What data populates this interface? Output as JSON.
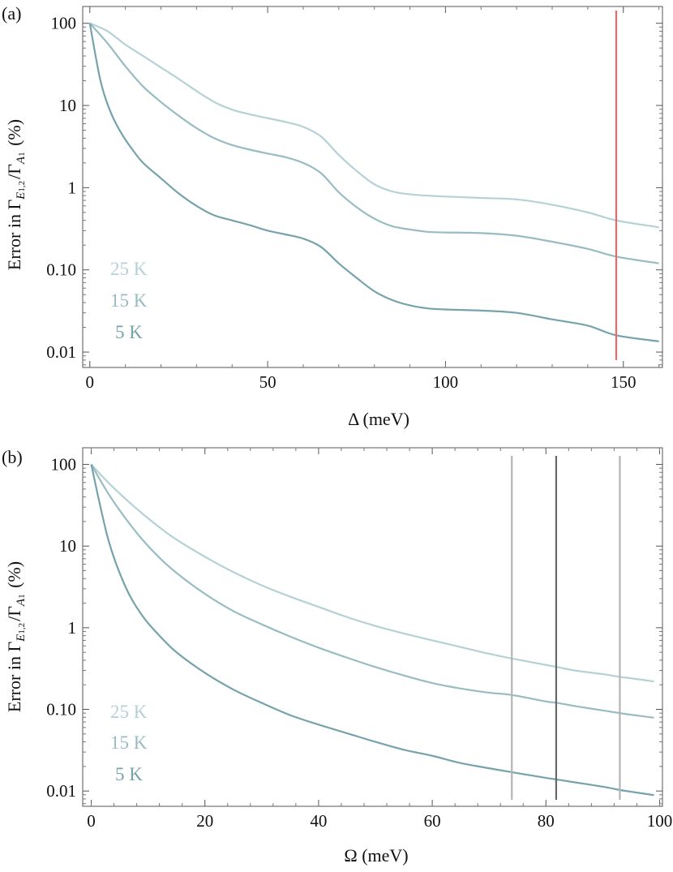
{
  "chart_data": [
    {
      "panel": "(a)",
      "type": "line",
      "xlabel": "Δ (meV)",
      "ylabel_prefix": "Error in Γ",
      "ylabel_sub1": "E",
      "ylabel_sub1b": "1,2",
      "ylabel_mid": "/Γ",
      "ylabel_sub2": "A",
      "ylabel_sub2b": "1",
      "ylabel_suffix": " (%)",
      "y_scale": "log",
      "xlim": [
        -2,
        161
      ],
      "ylim": [
        0.0065,
        160
      ],
      "xticks": [
        0,
        50,
        100,
        150
      ],
      "xtick_labels": [
        "0",
        "50",
        "100",
        "150"
      ],
      "yticks": [
        100,
        10,
        1,
        0.1,
        0.01
      ],
      "ytick_labels": [
        "100",
        "10",
        "1",
        "0.10",
        "0.01"
      ],
      "series": [
        {
          "name": "25 K",
          "color": "#b5d1d5",
          "x": [
            0,
            5,
            10,
            15,
            20,
            25,
            30,
            35,
            40,
            45,
            50,
            55,
            60,
            65,
            70,
            75,
            80,
            85,
            90,
            95,
            100,
            110,
            120,
            130,
            140,
            148,
            160
          ],
          "y": [
            100,
            80,
            55,
            40,
            29,
            21,
            15,
            11,
            8.9,
            7.8,
            7.0,
            6.3,
            5.5,
            4.2,
            2.5,
            1.6,
            1.1,
            0.9,
            0.83,
            0.8,
            0.78,
            0.75,
            0.72,
            0.62,
            0.5,
            0.4,
            0.33
          ]
        },
        {
          "name": "15 K",
          "color": "#98bcc1",
          "x": [
            0,
            5,
            10,
            15,
            20,
            25,
            30,
            35,
            40,
            45,
            50,
            55,
            60,
            65,
            70,
            75,
            80,
            85,
            90,
            95,
            100,
            110,
            120,
            130,
            140,
            148,
            160
          ],
          "y": [
            100,
            57,
            30,
            17,
            11,
            7.5,
            5.3,
            4.0,
            3.3,
            2.9,
            2.6,
            2.35,
            2.0,
            1.5,
            0.88,
            0.58,
            0.42,
            0.34,
            0.31,
            0.29,
            0.285,
            0.28,
            0.26,
            0.22,
            0.18,
            0.145,
            0.12
          ]
        },
        {
          "name": "5 K",
          "color": "#76a3ab",
          "x": [
            0,
            3,
            6,
            9,
            12,
            15,
            20,
            25,
            30,
            35,
            40,
            45,
            50,
            55,
            60,
            65,
            70,
            75,
            80,
            85,
            90,
            95,
            100,
            110,
            120,
            130,
            140,
            148,
            160
          ],
          "y": [
            100,
            20,
            8,
            4.5,
            2.9,
            2.0,
            1.3,
            0.85,
            0.6,
            0.46,
            0.4,
            0.35,
            0.3,
            0.27,
            0.24,
            0.19,
            0.12,
            0.08,
            0.055,
            0.043,
            0.037,
            0.034,
            0.033,
            0.032,
            0.03,
            0.025,
            0.021,
            0.016,
            0.0135
          ]
        }
      ],
      "vlines": [
        {
          "x": 148,
          "color": "#f0676a"
        }
      ],
      "legend_position": "bottom-left"
    },
    {
      "panel": "(b)",
      "type": "line",
      "xlabel": "Ω (meV)",
      "ylabel_prefix": "Error in Γ",
      "ylabel_sub1": "E",
      "ylabel_sub1b": "1,2",
      "ylabel_mid": "/Γ",
      "ylabel_sub2": "A",
      "ylabel_sub2b": "1",
      "ylabel_suffix": " (%)",
      "y_scale": "log",
      "xlim": [
        -1.5,
        100.5
      ],
      "ylim": [
        0.0065,
        160
      ],
      "xticks": [
        0,
        20,
        40,
        60,
        80,
        100
      ],
      "xtick_labels": [
        "0",
        "20",
        "40",
        "60",
        "80",
        "100"
      ],
      "yticks": [
        100,
        10,
        1,
        0.1,
        0.01
      ],
      "ytick_labels": [
        "100",
        "10",
        "1",
        "0.10",
        "0.01"
      ],
      "series": [
        {
          "name": "25 K",
          "color": "#b5d1d5",
          "x": [
            0,
            3,
            6,
            9,
            12,
            15,
            20,
            25,
            30,
            35,
            40,
            45,
            50,
            55,
            60,
            65,
            70,
            74,
            80,
            82,
            85,
            90,
            93,
            95,
            99
          ],
          "y": [
            100,
            60,
            38,
            25,
            17,
            12,
            7.4,
            4.8,
            3.3,
            2.4,
            1.8,
            1.35,
            1.05,
            0.85,
            0.7,
            0.58,
            0.48,
            0.42,
            0.35,
            0.33,
            0.3,
            0.27,
            0.25,
            0.24,
            0.22
          ]
        },
        {
          "name": "15 K",
          "color": "#98bcc1",
          "x": [
            0,
            3,
            6,
            9,
            12,
            15,
            20,
            25,
            30,
            35,
            40,
            45,
            50,
            55,
            60,
            65,
            70,
            74,
            80,
            82,
            85,
            90,
            93,
            95,
            99
          ],
          "y": [
            100,
            44,
            22,
            12,
            7.2,
            4.7,
            2.6,
            1.6,
            1.1,
            0.78,
            0.57,
            0.43,
            0.33,
            0.26,
            0.21,
            0.18,
            0.16,
            0.15,
            0.125,
            0.12,
            0.11,
            0.097,
            0.09,
            0.086,
            0.079
          ]
        },
        {
          "name": "5 K",
          "color": "#76a3ab",
          "x": [
            0,
            3,
            6,
            9,
            12,
            15,
            20,
            25,
            30,
            35,
            40,
            45,
            50,
            55,
            60,
            65,
            70,
            74,
            80,
            82,
            85,
            90,
            93,
            95,
            99
          ],
          "y": [
            100,
            12,
            3.2,
            1.4,
            0.8,
            0.5,
            0.28,
            0.175,
            0.12,
            0.085,
            0.065,
            0.051,
            0.04,
            0.032,
            0.027,
            0.022,
            0.019,
            0.017,
            0.0145,
            0.0138,
            0.0128,
            0.0113,
            0.0103,
            0.0098,
            0.0089
          ]
        }
      ],
      "vlines": [
        {
          "x": 74,
          "color": "#b4b4b4"
        },
        {
          "x": 81.8,
          "color": "#686868"
        },
        {
          "x": 93,
          "color": "#b4b4b4"
        }
      ],
      "legend_position": "bottom-left"
    }
  ]
}
